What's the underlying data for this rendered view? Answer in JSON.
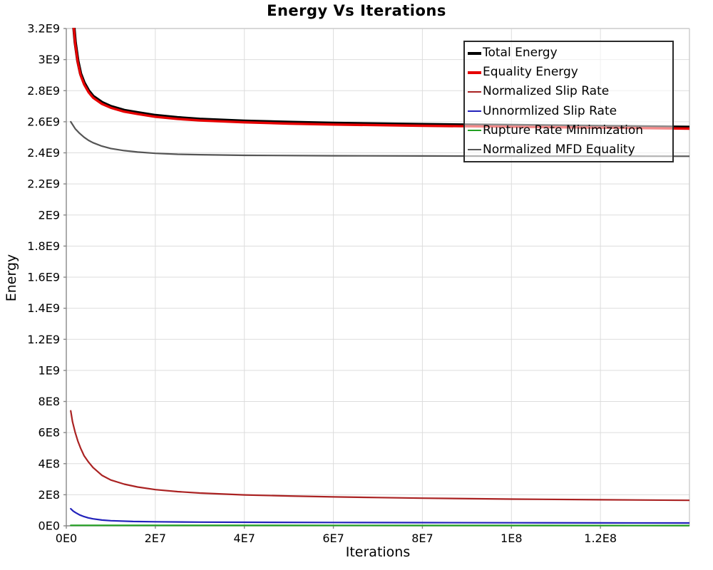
{
  "chart_data": {
    "type": "line",
    "title": "Energy Vs Iterations",
    "xlabel": "Iterations",
    "ylabel": "Energy",
    "xlim": [
      0,
      140000000.0
    ],
    "ylim": [
      0,
      3200000000.0
    ],
    "grid": true,
    "legend_position": "top-right",
    "axis_color": "#888888",
    "grid_color": "#dddddd",
    "frame_color": "#cccccc",
    "x_ticks": [
      {
        "value": 0,
        "label": "0E0"
      },
      {
        "value": 20000000.0,
        "label": "2E7"
      },
      {
        "value": 40000000.0,
        "label": "4E7"
      },
      {
        "value": 60000000.0,
        "label": "6E7"
      },
      {
        "value": 80000000.0,
        "label": "8E7"
      },
      {
        "value": 100000000.0,
        "label": "1E8"
      },
      {
        "value": 120000000.0,
        "label": "1.2E8"
      }
    ],
    "y_ticks": [
      {
        "value": 0,
        "label": "0E0"
      },
      {
        "value": 200000000.0,
        "label": "2E8"
      },
      {
        "value": 400000000.0,
        "label": "4E8"
      },
      {
        "value": 600000000.0,
        "label": "6E8"
      },
      {
        "value": 800000000.0,
        "label": "8E8"
      },
      {
        "value": 1000000000.0,
        "label": "1E9"
      },
      {
        "value": 1200000000.0,
        "label": "1.2E9"
      },
      {
        "value": 1400000000.0,
        "label": "1.4E9"
      },
      {
        "value": 1600000000.0,
        "label": "1.6E9"
      },
      {
        "value": 1800000000.0,
        "label": "1.8E9"
      },
      {
        "value": 2000000000.0,
        "label": "2E9"
      },
      {
        "value": 2200000000.0,
        "label": "2.2E9"
      },
      {
        "value": 2400000000.0,
        "label": "2.4E9"
      },
      {
        "value": 2600000000.0,
        "label": "2.6E9"
      },
      {
        "value": 2800000000.0,
        "label": "2.8E9"
      },
      {
        "value": 3000000000.0,
        "label": "3E9"
      },
      {
        "value": 3200000000.0,
        "label": "3.2E9"
      }
    ],
    "series": [
      {
        "name": "Total Energy",
        "color": "#000000",
        "width": 4.6,
        "x": [
          1400000.0,
          2000000.0,
          2600000.0,
          3200000.0,
          4000000.0,
          5000000.0,
          6000000.0,
          8000000.0,
          10000000.0,
          13000000.0,
          16000000.0,
          20000000.0,
          25000000.0,
          30000000.0,
          40000000.0,
          50000000.0,
          60000000.0,
          80000000.0,
          100000000.0,
          120000000.0,
          140000000.0
        ],
        "y": [
          3310000000.0,
          3110000000.0,
          2990000000.0,
          2910000000.0,
          2850000000.0,
          2800000000.0,
          2764000000.0,
          2724000000.0,
          2698000000.0,
          2673000000.0,
          2658000000.0,
          2640000000.0,
          2626000000.0,
          2616000000.0,
          2604000000.0,
          2596000000.0,
          2590000000.0,
          2582000000.0,
          2576000000.0,
          2570000000.0,
          2564000000.0
        ]
      },
      {
        "name": "Equality Energy",
        "color": "#e60000",
        "width": 3.4,
        "x": [
          1400000.0,
          2000000.0,
          2600000.0,
          3200000.0,
          4000000.0,
          5000000.0,
          6000000.0,
          8000000.0,
          10000000.0,
          13000000.0,
          16000000.0,
          20000000.0,
          25000000.0,
          30000000.0,
          40000000.0,
          50000000.0,
          60000000.0,
          80000000.0,
          100000000.0,
          120000000.0,
          140000000.0
        ],
        "y": [
          3300000000.0,
          3100000000.0,
          2980000000.0,
          2900000000.0,
          2840000000.0,
          2790000000.0,
          2755000000.0,
          2715000000.0,
          2690000000.0,
          2665000000.0,
          2650000000.0,
          2632000000.0,
          2618000000.0,
          2608000000.0,
          2596000000.0,
          2588000000.0,
          2582000000.0,
          2574000000.0,
          2568000000.0,
          2562000000.0,
          2556000000.0
        ]
      },
      {
        "name": "Normalized Slip Rate",
        "color": "#aa2222",
        "width": 2.2,
        "x": [
          1000000.0,
          1400000.0,
          2000000.0,
          2600000.0,
          3200000.0,
          4000000.0,
          5000000.0,
          6000000.0,
          8000000.0,
          10000000.0,
          13000000.0,
          16000000.0,
          20000000.0,
          25000000.0,
          30000000.0,
          40000000.0,
          50000000.0,
          60000000.0,
          70000000.0,
          80000000.0,
          100000000.0,
          120000000.0,
          140000000.0
        ],
        "y": [
          740000000.0,
          670000000.0,
          600000000.0,
          545000000.0,
          500000000.0,
          450000000.0,
          410000000.0,
          375000000.0,
          325000000.0,
          295000000.0,
          268000000.0,
          250000000.0,
          233000000.0,
          220000000.0,
          211000000.0,
          199000000.0,
          192000000.0,
          186000000.0,
          182000000.0,
          178000000.0,
          172000000.0,
          168000000.0,
          164000000.0
        ]
      },
      {
        "name": "Unnormlized Slip Rate",
        "color": "#2222bb",
        "width": 2.2,
        "x": [
          1000000.0,
          1500000.0,
          2000000.0,
          3000000.0,
          4000000.0,
          5000000.0,
          6000000.0,
          8000000.0,
          10000000.0,
          15000000.0,
          20000000.0,
          30000000.0,
          40000000.0,
          60000000.0,
          80000000.0,
          100000000.0,
          120000000.0,
          140000000.0
        ],
        "y": [
          110000000.0,
          96000000.0,
          86000000.0,
          70000000.0,
          59000000.0,
          51000000.0,
          45000000.0,
          37000000.0,
          33000000.0,
          28000000.0,
          26000000.0,
          24000000.0,
          23000000.0,
          21500000.0,
          20500000.0,
          19500000.0,
          19000000.0,
          18500000.0
        ]
      },
      {
        "name": "Rupture Rate Minimization",
        "color": "#22a022",
        "width": 2.2,
        "x": [
          1000000.0,
          140000000.0
        ],
        "y": [
          3000000.0,
          2000000.0
        ]
      },
      {
        "name": "Normalized MFD Equality",
        "color": "#555555",
        "width": 2.2,
        "x": [
          1000000.0,
          2000000.0,
          3000000.0,
          4000000.0,
          5000000.0,
          6000000.0,
          8000000.0,
          10000000.0,
          13000000.0,
          16000000.0,
          20000000.0,
          25000000.0,
          30000000.0,
          40000000.0,
          60000000.0,
          80000000.0,
          100000000.0,
          120000000.0,
          140000000.0
        ],
        "y": [
          2600000000.0,
          2555000000.0,
          2525000000.0,
          2500000000.0,
          2480000000.0,
          2465000000.0,
          2443000000.0,
          2428000000.0,
          2414000000.0,
          2405000000.0,
          2397000000.0,
          2391000000.0,
          2388000000.0,
          2384000000.0,
          2381000000.0,
          2380000000.0,
          2379000000.0,
          2379000000.0,
          2378000000.0
        ]
      }
    ]
  }
}
